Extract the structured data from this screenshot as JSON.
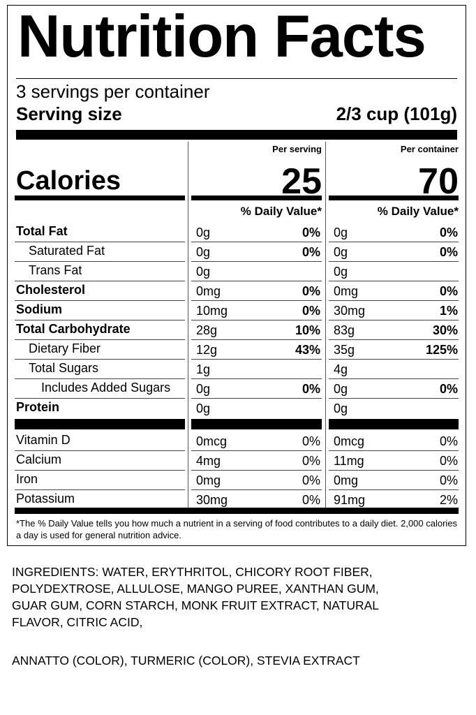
{
  "title": "Nutrition Facts",
  "servings_per_container": "3 servings per container",
  "serving_size_label": "Serving size",
  "serving_size_value": "2/3 cup (101g)",
  "per_serving_label": "Per serving",
  "per_container_label": "Per container",
  "calories_label": "Calories",
  "calories_serving": "25",
  "calories_container": "70",
  "dv_header": "% Daily Value*",
  "nutrients": [
    {
      "name": "Total Fat",
      "bold": true,
      "indent": 0,
      "s_amt": "0g",
      "s_dv": "0%",
      "c_amt": "0g",
      "c_dv": "0%"
    },
    {
      "name": "Saturated Fat",
      "bold": false,
      "indent": 1,
      "s_amt": "0g",
      "s_dv": "0%",
      "c_amt": "0g",
      "c_dv": "0%"
    },
    {
      "name": "Trans Fat",
      "bold": false,
      "indent": 1,
      "s_amt": "0g",
      "s_dv": "",
      "c_amt": "0g",
      "c_dv": ""
    },
    {
      "name": "Cholesterol",
      "bold": true,
      "indent": 0,
      "s_amt": "0mg",
      "s_dv": "0%",
      "c_amt": "0mg",
      "c_dv": "0%"
    },
    {
      "name": "Sodium",
      "bold": true,
      "indent": 0,
      "s_amt": "10mg",
      "s_dv": "0%",
      "c_amt": "30mg",
      "c_dv": "1%"
    },
    {
      "name": "Total Carbohydrate",
      "bold": true,
      "indent": 0,
      "s_amt": "28g",
      "s_dv": "10%",
      "c_amt": "83g",
      "c_dv": "30%"
    },
    {
      "name": "Dietary Fiber",
      "bold": false,
      "indent": 1,
      "s_amt": "12g",
      "s_dv": "43%",
      "c_amt": "35g",
      "c_dv": "125%"
    },
    {
      "name": "Total Sugars",
      "bold": false,
      "indent": 1,
      "s_amt": "1g",
      "s_dv": "",
      "c_amt": "4g",
      "c_dv": ""
    },
    {
      "name": "Includes Added Sugars",
      "bold": false,
      "indent": 2,
      "s_amt": "0g",
      "s_dv": "0%",
      "c_amt": "0g",
      "c_dv": "0%"
    },
    {
      "name": "Protein",
      "bold": true,
      "indent": 0,
      "s_amt": "0g",
      "s_dv": "",
      "c_amt": "0g",
      "c_dv": ""
    }
  ],
  "vitamins": [
    {
      "name": "Vitamin D",
      "s_amt": "0mcg",
      "s_dv": "0%",
      "c_amt": "0mcg",
      "c_dv": "0%"
    },
    {
      "name": "Calcium",
      "s_amt": "4mg",
      "s_dv": "0%",
      "c_amt": "11mg",
      "c_dv": "0%"
    },
    {
      "name": "Iron",
      "s_amt": "0mg",
      "s_dv": "0%",
      "c_amt": "0mg",
      "c_dv": "0%"
    },
    {
      "name": "Potassium",
      "s_amt": "30mg",
      "s_dv": "0%",
      "c_amt": "91mg",
      "c_dv": "2%"
    }
  ],
  "footnote": "*The % Daily Value tells you how much a nutrient in a serving of food contributes to a daily diet. 2,000 calories a day is used for general nutrition advice.",
  "ingredients_line1": "INGREDIENTS: WATER, ERYTHRITOL, CHICORY ROOT FIBER, POLYDEXTROSE, ALLULOSE, MANGO PUREE, XANTHAN GUM, GUAR GUM, CORN STARCH, MONK FRUIT EXTRACT, NATURAL FLAVOR, CITRIC ACID,",
  "ingredients_line2": "ANNATTO (COLOR), TURMERIC (COLOR), STEVIA EXTRACT"
}
